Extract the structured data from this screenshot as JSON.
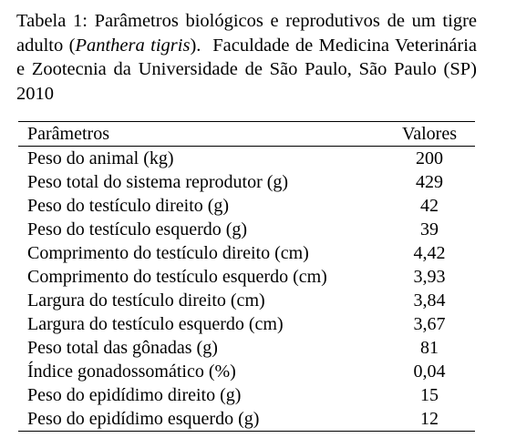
{
  "caption": [
    "Tabela 1: Parâmetros biológicos e reprodutivos de um tigre adulto (",
    "Panthera tigris",
    ").  Faculdade de Medicina Veterinária e Zootecnia da Universidade de São Paulo, São Paulo (SP)  2010"
  ],
  "table": {
    "header": [
      "Parâmetros",
      "Valores"
    ],
    "rows": [
      [
        "Peso do animal (kg)",
        "200"
      ],
      [
        "Peso total do sistema reprodutor (g)",
        "429"
      ],
      [
        "Peso do testículo direito (g)",
        "42"
      ],
      [
        "Peso do testículo esquerdo (g)",
        "39"
      ],
      [
        "Comprimento do testículo direito (cm)",
        "4,42"
      ],
      [
        "Comprimento do testículo esquerdo (cm)",
        "3,93"
      ],
      [
        "Largura do testículo direito (cm)",
        "3,84"
      ],
      [
        "Largura do testículo esquerdo (cm)",
        "3,67"
      ],
      [
        "Peso total das gônadas (g)",
        "81"
      ],
      [
        "Índice gonadossomático (%)",
        "0,04"
      ],
      [
        "Peso do epidídimo direito (g)",
        "15"
      ],
      [
        "Peso do epidídimo esquerdo (g)",
        "12"
      ]
    ]
  }
}
